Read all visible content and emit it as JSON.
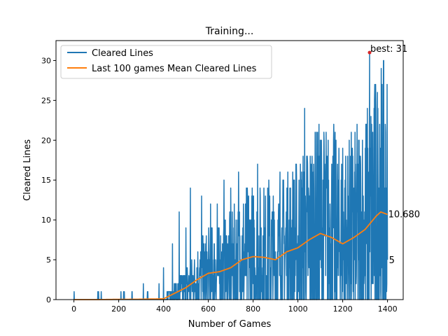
{
  "chart_data": {
    "type": "line",
    "title": "Training...",
    "xlabel": "Number of Games",
    "ylabel": "Cleared Lines",
    "xlim": [
      -80,
      1470
    ],
    "ylim": [
      0,
      32.5
    ],
    "xticks": [
      0,
      200,
      400,
      600,
      800,
      1000,
      1200,
      1400
    ],
    "yticks": [
      0,
      5,
      10,
      15,
      20,
      25,
      30
    ],
    "grid": false,
    "legend_position": "top-left",
    "series": [
      {
        "name": "Cleared Lines",
        "color": "#1f77b4",
        "n_games": 1400,
        "keypoints": [
          [
            0,
            0
          ],
          [
            100,
            0
          ],
          [
            110,
            1
          ],
          [
            115,
            0
          ],
          [
            200,
            0
          ],
          [
            210,
            1
          ],
          [
            215,
            0
          ],
          [
            225,
            1
          ],
          [
            230,
            0
          ],
          [
            300,
            0
          ],
          [
            310,
            2
          ],
          [
            315,
            0
          ],
          [
            330,
            1
          ],
          [
            335,
            0
          ],
          [
            350,
            0
          ],
          [
            380,
            2
          ],
          [
            390,
            0
          ],
          [
            400,
            4
          ],
          [
            405,
            0
          ],
          [
            440,
            7
          ],
          [
            445,
            0
          ],
          [
            460,
            0
          ],
          [
            470,
            11
          ],
          [
            475,
            1
          ],
          [
            500,
            9
          ],
          [
            505,
            0
          ],
          [
            520,
            14
          ],
          [
            525,
            2
          ],
          [
            560,
            3
          ],
          [
            570,
            13
          ],
          [
            600,
            2
          ],
          [
            610,
            12
          ],
          [
            630,
            3
          ],
          [
            640,
            12
          ],
          [
            660,
            1
          ],
          [
            670,
            15
          ],
          [
            690,
            4
          ],
          [
            700,
            14
          ],
          [
            720,
            2
          ],
          [
            735,
            16
          ],
          [
            760,
            3
          ],
          [
            780,
            13
          ],
          [
            800,
            2
          ],
          [
            820,
            17
          ],
          [
            845,
            3
          ],
          [
            870,
            15
          ],
          [
            900,
            2
          ],
          [
            920,
            16
          ],
          [
            950,
            3
          ],
          [
            980,
            15
          ],
          [
            1000,
            3
          ],
          [
            1030,
            24
          ],
          [
            1050,
            4
          ],
          [
            1070,
            17
          ],
          [
            1090,
            3
          ],
          [
            1115,
            15
          ],
          [
            1140,
            2
          ],
          [
            1160,
            22
          ],
          [
            1180,
            3
          ],
          [
            1200,
            19
          ],
          [
            1215,
            2
          ],
          [
            1235,
            18
          ],
          [
            1260,
            2
          ],
          [
            1280,
            17
          ],
          [
            1300,
            3
          ],
          [
            1320,
            31
          ],
          [
            1330,
            4
          ],
          [
            1340,
            24
          ],
          [
            1345,
            26
          ],
          [
            1350,
            3
          ],
          [
            1365,
            22
          ],
          [
            1375,
            4
          ],
          [
            1385,
            12
          ],
          [
            1395,
            9
          ],
          [
            1400,
            5
          ]
        ],
        "end_label": "5"
      },
      {
        "name": "Last 100 games Mean Cleared Lines",
        "color": "#ff7f0e",
        "keypoints": [
          [
            0,
            0
          ],
          [
            100,
            0
          ],
          [
            200,
            0.03
          ],
          [
            300,
            0.05
          ],
          [
            400,
            0.1
          ],
          [
            450,
            0.8
          ],
          [
            500,
            1.5
          ],
          [
            550,
            2.5
          ],
          [
            600,
            3.3
          ],
          [
            650,
            3.5
          ],
          [
            700,
            4
          ],
          [
            750,
            5
          ],
          [
            800,
            5.4
          ],
          [
            850,
            5.3
          ],
          [
            900,
            5
          ],
          [
            950,
            6
          ],
          [
            1000,
            6.5
          ],
          [
            1050,
            7.5
          ],
          [
            1100,
            8.3
          ],
          [
            1150,
            7.8
          ],
          [
            1200,
            7
          ],
          [
            1250,
            7.8
          ],
          [
            1300,
            8.8
          ],
          [
            1350,
            10.5
          ],
          [
            1370,
            11
          ],
          [
            1400,
            10.68
          ]
        ],
        "end_label": "10.680"
      }
    ],
    "annotations": [
      {
        "text": "best: 31",
        "x": 1320,
        "y": 31,
        "marker_color": "#d62728"
      }
    ]
  }
}
